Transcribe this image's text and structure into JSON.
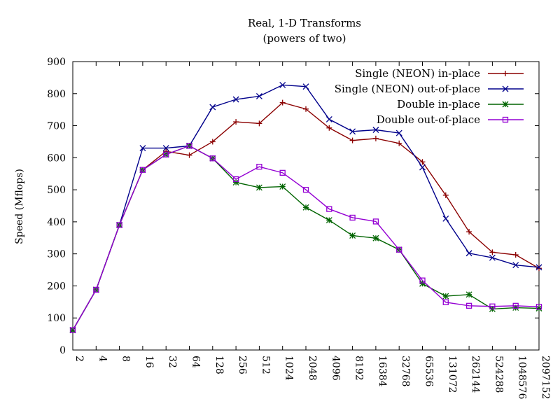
{
  "chart_data": {
    "type": "line",
    "title": "Real, 1-D Transforms",
    "subtitle": "(powers of two)",
    "xlabel": "",
    "ylabel": "Speed (Mflops)",
    "x_scale": "log2 (categorical powers of two)",
    "categories": [
      "2",
      "4",
      "8",
      "16",
      "32",
      "64",
      "128",
      "256",
      "512",
      "1024",
      "2048",
      "4096",
      "8192",
      "16384",
      "32768",
      "65536",
      "131072",
      "262144",
      "524288",
      "1048576",
      "2097152"
    ],
    "ylim": [
      0,
      900
    ],
    "yticks": [
      0,
      100,
      200,
      300,
      400,
      500,
      600,
      700,
      800,
      900
    ],
    "grid": false,
    "legend_position": "top-right",
    "series": [
      {
        "name": "Single (NEON) in-place",
        "color": "#8b0000",
        "marker": "plus",
        "values": [
          62,
          188,
          390,
          562,
          620,
          608,
          650,
          712,
          707,
          772,
          752,
          693,
          654,
          660,
          645,
          587,
          483,
          369,
          305,
          297,
          255
        ]
      },
      {
        "name": "Single (NEON) out-of-place",
        "color": "#00008b",
        "marker": "cross",
        "values": [
          62,
          188,
          390,
          630,
          630,
          637,
          758,
          782,
          792,
          827,
          822,
          720,
          682,
          687,
          677,
          570,
          410,
          302,
          288,
          265,
          258
        ]
      },
      {
        "name": "Double in-place",
        "color": "#006400",
        "marker": "star",
        "values": [
          62,
          188,
          390,
          562,
          610,
          637,
          598,
          523,
          507,
          510,
          445,
          405,
          357,
          349,
          313,
          207,
          168,
          173,
          128,
          132,
          130
        ]
      },
      {
        "name": "Double out-of-place",
        "color": "#9400d3",
        "marker": "square",
        "values": [
          62,
          188,
          390,
          562,
          610,
          637,
          598,
          533,
          572,
          553,
          500,
          440,
          413,
          401,
          313,
          217,
          149,
          138,
          136,
          138,
          135
        ]
      }
    ]
  }
}
